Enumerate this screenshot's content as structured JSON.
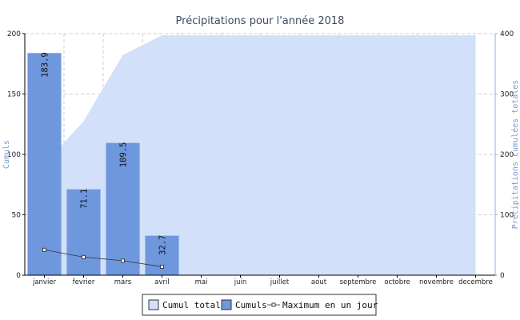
{
  "chart_data": {
    "type": "bar",
    "title": "Précipitations pour l'année 2018",
    "ylabel": "Cumuls",
    "ylabel_right": "Précipitations cumulées totales",
    "categories": [
      "janvier",
      "fevrier",
      "mars",
      "avril",
      "mai",
      "juin",
      "juillet",
      "aout",
      "septembre",
      "octobre",
      "novembre",
      "decembre"
    ],
    "ylim": [
      0,
      200
    ],
    "ylim_right": [
      0,
      400
    ],
    "yticks": [
      0,
      50,
      100,
      150,
      200
    ],
    "yticks_right": [
      0,
      100,
      200,
      300,
      400
    ],
    "grid": true,
    "legend_position": "bottom",
    "series": [
      {
        "name": "Cumul total",
        "type": "area",
        "axis": "right",
        "color": "#d2e0f9",
        "values": [
          183.9,
          255.0,
          364.5,
          397.2,
          397.2,
          397.2,
          397.2,
          397.2,
          397.2,
          397.2,
          397.2,
          397.2
        ]
      },
      {
        "name": "Cumuls",
        "type": "bar",
        "axis": "left",
        "color": "#6f97dd",
        "values": [
          183.9,
          71.1,
          109.5,
          32.7,
          null,
          null,
          null,
          null,
          null,
          null,
          null,
          null
        ],
        "labels": [
          "183.9",
          "71.1",
          "109.5",
          "32.7"
        ]
      },
      {
        "name": "Maximum en un jour",
        "type": "line",
        "axis": "left",
        "color": "#333333",
        "values": [
          21,
          15,
          12,
          7,
          null,
          null,
          null,
          null,
          null,
          null,
          null,
          null
        ]
      }
    ]
  }
}
